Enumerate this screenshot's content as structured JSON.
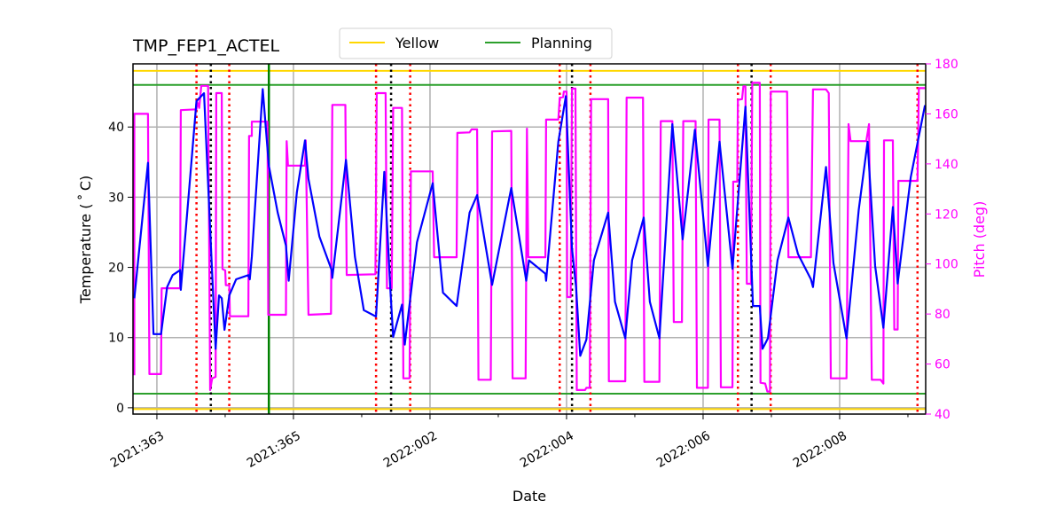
{
  "chart_data": {
    "type": "line",
    "title": "TMP_FEP1_ACTEL",
    "xlabel": "Date",
    "ylabel": "Temperature ($^\\circ$C)",
    "ylabel_display": "Temperature ( ˚ C)",
    "y2label": "Pitch (deg)",
    "xlim": [
      "2021:362.65",
      "2022:009.26"
    ],
    "ylim": [
      -0.9,
      49
    ],
    "y2lim": [
      40,
      180
    ],
    "xticks": [
      "2021:363",
      "2021:365",
      "2022:002",
      "2022:004",
      "2022:006",
      "2022:008"
    ],
    "xminor_step_days": 1,
    "yticks": [
      0,
      10,
      20,
      30,
      40
    ],
    "y2ticks": [
      40,
      60,
      80,
      100,
      120,
      140,
      160,
      180
    ],
    "grid": true,
    "legend": {
      "position": "top-center",
      "entries": [
        {
          "label": "Yellow",
          "color": "#ffd700"
        },
        {
          "label": "Planning",
          "color": "#2ca02c"
        }
      ]
    },
    "colors": {
      "temperature": "#0000ff",
      "pitch": "#ff00ff",
      "yellow": "#ffd700",
      "planning": "#2ca02c",
      "vline_green": "#008000",
      "vline_red": "#ff0000",
      "vline_black": "#000000",
      "grid": "#b0b0b0"
    },
    "hlines": [
      {
        "legend": "Yellow",
        "value": 48,
        "color": "#ffd700"
      },
      {
        "legend": "Yellow",
        "value": 0,
        "color": "#ffd700"
      },
      {
        "legend": "Planning",
        "value": 46,
        "color": "#2ca02c"
      },
      {
        "legend": "Planning",
        "value": 2,
        "color": "#2ca02c"
      }
    ],
    "vlines_red": [
      "2021:363.58",
      "2021:364.06",
      "2022:001.21",
      "2022:001.71",
      "2022:003.90",
      "2022:004.35",
      "2022:006.51",
      "2022:006.99",
      "2022:009.14"
    ],
    "vlines_black": [
      "2021:363.79",
      "2022:001.43",
      "2022:004.08",
      "2022:006.71"
    ],
    "vlines_green": [
      "2021:364.64"
    ],
    "series": [
      {
        "axis": "left",
        "color": "#0000ff",
        "points": [
          [
            "2021:362.67",
            15.6
          ],
          [
            "2021:362.87",
            34.9
          ],
          [
            "2021:362.95",
            10.5
          ],
          [
            "2021:363.06",
            10.5
          ],
          [
            "2021:363.15",
            17.2
          ],
          [
            "2021:363.23",
            18.9
          ],
          [
            "2021:363.34",
            19.6
          ],
          [
            "2021:363.35",
            16.8
          ],
          [
            "2021:363.58",
            43.7
          ],
          [
            "2021:363.69",
            44.8
          ],
          [
            "2021:363.80",
            21.0
          ],
          [
            "2021:363.86",
            8.4
          ],
          [
            "2021:363.91",
            16.0
          ],
          [
            "2021:363.95",
            15.6
          ],
          [
            "2021:363.99",
            11.1
          ],
          [
            "2021:364.06",
            16.0
          ],
          [
            "2021:364.16",
            18.3
          ],
          [
            "2021:364.34",
            18.9
          ],
          [
            "2021:364.36",
            18.3
          ],
          [
            "2021:364.39",
            21.5
          ],
          [
            "2021:364.55",
            45.4
          ],
          [
            "2021:364.64",
            34.5
          ],
          [
            "2021:364.77",
            27.8
          ],
          [
            "2021:364.89",
            23.1
          ],
          [
            "2021:364.93",
            18.1
          ],
          [
            "2021:365.05",
            30.7
          ],
          [
            "2021:365.17",
            38.1
          ],
          [
            "2021:365.22",
            32.6
          ],
          [
            "2021:365.38",
            24.4
          ],
          [
            "2021:365.56",
            19.6
          ],
          [
            "2021:365.57",
            18.5
          ],
          [
            "2021:365.77",
            35.3
          ],
          [
            "2021:365.90",
            21.5
          ],
          [
            "2022:001.03",
            13.9
          ],
          [
            "2022:001.21",
            13.0
          ],
          [
            "2022:001.33",
            33.6
          ],
          [
            "2022:001.42",
            16.8
          ],
          [
            "2022:001.46",
            10.1
          ],
          [
            "2022:001.59",
            14.7
          ],
          [
            "2022:001.63",
            9.0
          ],
          [
            "2022:001.81",
            23.6
          ],
          [
            "2022:002.04",
            32.0
          ],
          [
            "2022:002.19",
            16.4
          ],
          [
            "2022:002.39",
            14.5
          ],
          [
            "2022:002.58",
            27.8
          ],
          [
            "2022:002.69",
            30.3
          ],
          [
            "2022:002.91",
            17.5
          ],
          [
            "2022:003.19",
            31.3
          ],
          [
            "2022:003.41",
            18.1
          ],
          [
            "2022:003.45",
            21.0
          ],
          [
            "2022:003.69",
            19.1
          ],
          [
            "2022:003.70",
            18.1
          ],
          [
            "2022:003.88",
            37.9
          ],
          [
            "2022:003.99",
            44.4
          ],
          [
            "2022:004.08",
            22.7
          ],
          [
            "2022:004.14",
            17.2
          ],
          [
            "2022:004.20",
            7.4
          ],
          [
            "2022:004.29",
            9.7
          ],
          [
            "2022:004.40",
            21.0
          ],
          [
            "2022:004.61",
            27.8
          ],
          [
            "2022:004.71",
            15.1
          ],
          [
            "2022:004.86",
            9.9
          ],
          [
            "2022:004.96",
            21.0
          ],
          [
            "2022:005.13",
            27.1
          ],
          [
            "2022:005.22",
            15.1
          ],
          [
            "2022:005.36",
            9.9
          ],
          [
            "2022:005.55",
            40.4
          ],
          [
            "2022:005.70",
            24.0
          ],
          [
            "2022:005.88",
            39.6
          ],
          [
            "2022:006.07",
            20.2
          ],
          [
            "2022:006.24",
            37.9
          ],
          [
            "2022:006.43",
            19.8
          ],
          [
            "2022:006.62",
            42.9
          ],
          [
            "2022:006.73",
            14.5
          ],
          [
            "2022:006.83",
            14.5
          ],
          [
            "2022:006.87",
            8.4
          ],
          [
            "2022:006.95",
            9.9
          ],
          [
            "2022:007.09",
            21.0
          ],
          [
            "2022:007.25",
            27.1
          ],
          [
            "2022:007.39",
            21.9
          ],
          [
            "2022:007.58",
            18.3
          ],
          [
            "2022:007.61",
            17.2
          ],
          [
            "2022:007.80",
            34.3
          ],
          [
            "2022:007.91",
            20.6
          ],
          [
            "2022:008.10",
            9.9
          ],
          [
            "2022:008.28",
            28.2
          ],
          [
            "2022:008.41",
            37.9
          ],
          [
            "2022:008.52",
            20.2
          ],
          [
            "2022:008.64",
            11.4
          ],
          [
            "2022:008.78",
            28.6
          ],
          [
            "2022:008.85",
            17.7
          ],
          [
            "2022:009.04",
            32.8
          ],
          [
            "2022:009.25",
            43.1
          ]
        ]
      },
      {
        "axis": "right",
        "color": "#ff00ff",
        "points": [
          [
            "2021:362.67",
            55.5
          ],
          [
            "2021:362.67",
            160
          ],
          [
            "2021:362.87",
            160
          ],
          [
            "2021:362.89",
            56
          ],
          [
            "2021:363.06",
            56
          ],
          [
            "2021:363.07",
            90.3
          ],
          [
            "2021:363.34",
            90.3
          ],
          [
            "2021:363.35",
            161.5
          ],
          [
            "2021:363.58",
            161.8
          ],
          [
            "2021:363.59",
            164.8
          ],
          [
            "2021:363.62",
            162.4
          ],
          [
            "2021:363.65",
            171.2
          ],
          [
            "2021:363.75",
            171.2
          ],
          [
            "2021:363.78",
            49.6
          ],
          [
            "2021:363.81",
            54.3
          ],
          [
            "2021:363.86",
            54.9
          ],
          [
            "2021:363.87",
            168.3
          ],
          [
            "2021:363.95",
            168.3
          ],
          [
            "2021:363.96",
            98.0
          ],
          [
            "2021:364.00",
            97.4
          ],
          [
            "2021:364.01",
            91.5
          ],
          [
            "2021:364.06",
            91.5
          ],
          [
            "2021:364.07",
            79.1
          ],
          [
            "2021:364.34",
            79.1
          ],
          [
            "2021:364.35",
            151.2
          ],
          [
            "2021:364.39",
            151.2
          ],
          [
            "2021:364.39",
            156.9
          ],
          [
            "2021:364.62",
            156.9
          ],
          [
            "2021:364.63",
            79.7
          ],
          [
            "2021:364.89",
            79.7
          ],
          [
            "2021:364.90",
            149.1
          ],
          [
            "2021:364.92",
            139.3
          ],
          [
            "2021:365.17",
            139.3
          ],
          [
            "2021:365.18",
            149.4
          ],
          [
            "2021:365.22",
            79.7
          ],
          [
            "2021:365.55",
            80.1
          ],
          [
            "2021:365.57",
            163.6
          ],
          [
            "2021:365.76",
            163.6
          ],
          [
            "2021:365.78",
            95.6
          ],
          [
            "2022:001.20",
            95.9
          ],
          [
            "2022:001.22",
            168.3
          ],
          [
            "2022:001.35",
            168.3
          ],
          [
            "2022:001.37",
            90.3
          ],
          [
            "2022:001.44",
            90.3
          ],
          [
            "2022:001.46",
            162.4
          ],
          [
            "2022:001.59",
            162.4
          ],
          [
            "2022:001.61",
            54.3
          ],
          [
            "2022:001.70",
            54.3
          ],
          [
            "2022:001.72",
            137.0
          ],
          [
            "2022:002.04",
            137.0
          ],
          [
            "2022:002.06",
            102.7
          ],
          [
            "2022:002.39",
            102.7
          ],
          [
            "2022:002.40",
            152.4
          ],
          [
            "2022:002.58",
            152.6
          ],
          [
            "2022:002.61",
            153.8
          ],
          [
            "2022:002.69",
            153.8
          ],
          [
            "2022:002.71",
            53.7
          ],
          [
            "2022:002.89",
            53.7
          ],
          [
            "2022:002.91",
            153.0
          ],
          [
            "2022:003.19",
            153.2
          ],
          [
            "2022:003.21",
            54.3
          ],
          [
            "2022:003.40",
            54.3
          ],
          [
            "2022:003.42",
            154.1
          ],
          [
            "2022:003.44",
            102.7
          ],
          [
            "2022:003.69",
            102.7
          ],
          [
            "2022:003.70",
            157.7
          ],
          [
            "2022:003.88",
            157.7
          ],
          [
            "2022:003.90",
            166.5
          ],
          [
            "2022:003.95",
            166.7
          ],
          [
            "2022:003.96",
            168.9
          ],
          [
            "2022:004.00",
            168.9
          ],
          [
            "2022:004.01",
            86.8
          ],
          [
            "2022:004.06",
            86.8
          ],
          [
            "2022:004.08",
            170.1
          ],
          [
            "2022:004.13",
            170.1
          ],
          [
            "2022:004.15",
            49.6
          ],
          [
            "2022:004.27",
            49.6
          ],
          [
            "2022:004.29",
            50.5
          ],
          [
            "2022:004.34",
            50.5
          ],
          [
            "2022:004.36",
            165.9
          ],
          [
            "2022:004.61",
            165.9
          ],
          [
            "2022:004.62",
            53.1
          ],
          [
            "2022:004.86",
            53.1
          ],
          [
            "2022:004.88",
            166.5
          ],
          [
            "2022:005.12",
            166.5
          ],
          [
            "2022:005.14",
            52.9
          ],
          [
            "2022:005.36",
            52.9
          ],
          [
            "2022:005.38",
            157.1
          ],
          [
            "2022:005.55",
            157.1
          ],
          [
            "2022:005.57",
            76.8
          ],
          [
            "2022:005.69",
            76.8
          ],
          [
            "2022:005.71",
            157.1
          ],
          [
            "2022:005.89",
            157.1
          ],
          [
            "2022:005.91",
            50.5
          ],
          [
            "2022:006.07",
            50.5
          ],
          [
            "2022:006.08",
            157.7
          ],
          [
            "2022:006.24",
            157.7
          ],
          [
            "2022:006.26",
            50.7
          ],
          [
            "2022:006.43",
            50.7
          ],
          [
            "2022:006.44",
            132.9
          ],
          [
            "2022:006.50",
            132.9
          ],
          [
            "2022:006.51",
            165.6
          ],
          [
            "2022:006.57",
            165.9
          ],
          [
            "2022:006.59",
            171.0
          ],
          [
            "2022:006.62",
            171.0
          ],
          [
            "2022:006.64",
            92.1
          ],
          [
            "2022:006.70",
            92.1
          ],
          [
            "2022:006.72",
            172.4
          ],
          [
            "2022:006.83",
            172.4
          ],
          [
            "2022:006.84",
            52.5
          ],
          [
            "2022:006.91",
            52.2
          ],
          [
            "2022:006.94",
            49.0
          ],
          [
            "2022:006.98",
            49.0
          ],
          [
            "2022:006.99",
            168.9
          ],
          [
            "2022:007.23",
            168.9
          ],
          [
            "2022:007.25",
            102.7
          ],
          [
            "2022:007.58",
            102.7
          ],
          [
            "2022:007.61",
            169.8
          ],
          [
            "2022:007.80",
            169.8
          ],
          [
            "2022:007.84",
            168.3
          ],
          [
            "2022:007.87",
            54.3
          ],
          [
            "2022:008.10",
            54.3
          ],
          [
            "2022:008.13",
            155.9
          ],
          [
            "2022:008.16",
            149.1
          ],
          [
            "2022:008.39",
            149.1
          ],
          [
            "2022:008.43",
            155.9
          ],
          [
            "2022:008.47",
            53.7
          ],
          [
            "2022:008.60",
            53.7
          ],
          [
            "2022:008.64",
            52.2
          ],
          [
            "2022:008.65",
            149.4
          ],
          [
            "2022:008.78",
            149.4
          ],
          [
            "2022:008.80",
            73.8
          ],
          [
            "2022:008.85",
            73.8
          ],
          [
            "2022:008.86",
            133.2
          ],
          [
            "2022:009.14",
            133.2
          ],
          [
            "2022:009.16",
            170.3
          ],
          [
            "2022:009.25",
            170.3
          ]
        ]
      }
    ]
  }
}
